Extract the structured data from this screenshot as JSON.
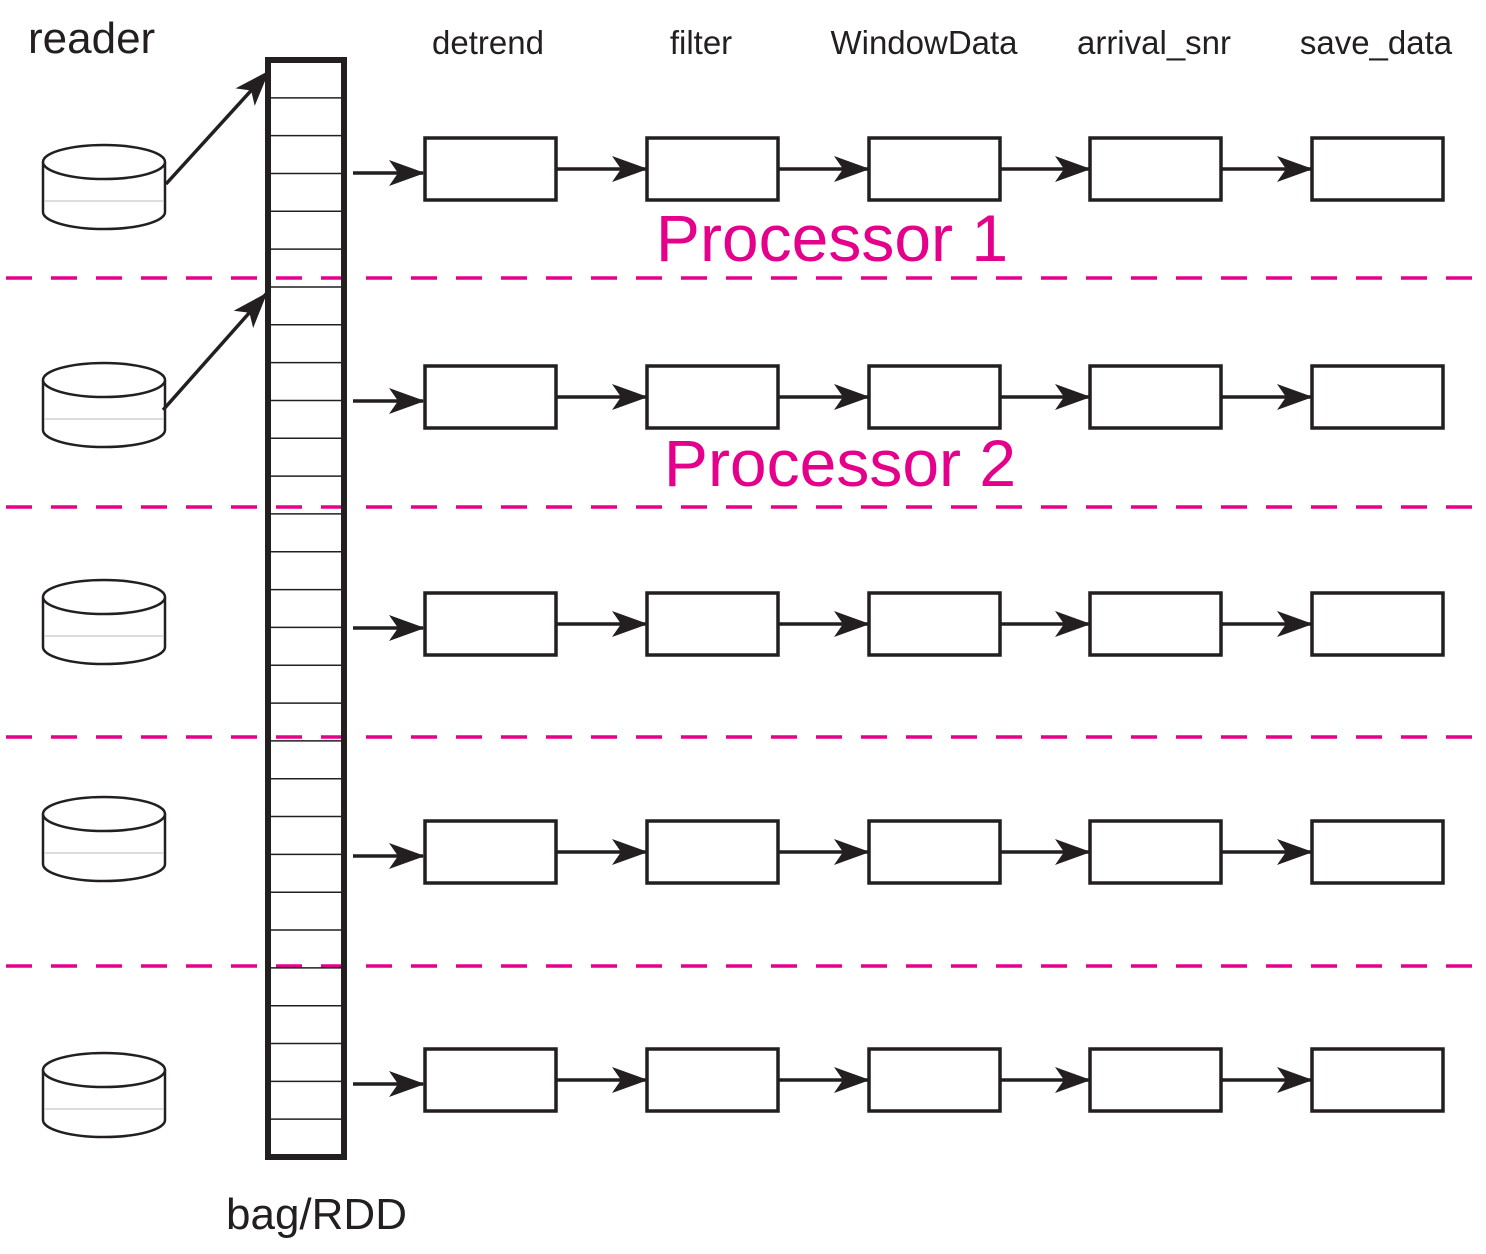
{
  "title": {
    "reader": "reader",
    "bag": "bag/RDD"
  },
  "stages": [
    "detrend",
    "filter",
    "WindowData",
    "arrival_snr",
    "save_data"
  ],
  "processors": [
    "Processor 1",
    "Processor 2"
  ],
  "rows": 5,
  "bag_cells": 29,
  "colors": {
    "ink": "#231f20",
    "divider": "#e5008c",
    "processor_text": "#e5008c"
  }
}
